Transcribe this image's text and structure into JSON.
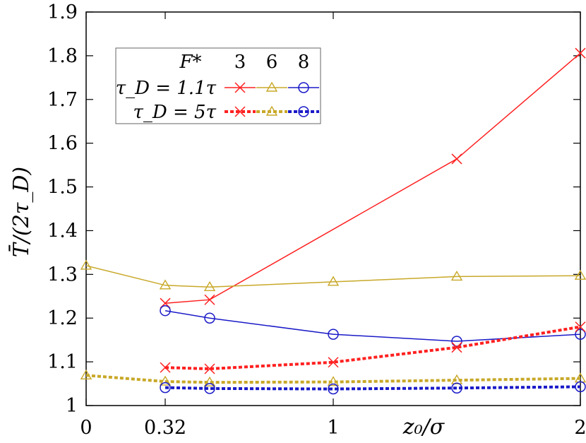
{
  "chart_data": {
    "type": "line",
    "xlabel": "z₀/σ",
    "ylabel": "T̄/(2τ_D)",
    "xlim": [
      0,
      2
    ],
    "ylim": [
      1,
      1.9
    ],
    "xticks": [
      {
        "value": 0,
        "label": "0"
      },
      {
        "value": 0.32,
        "label": "0.32"
      },
      {
        "value": 1,
        "label": "1"
      },
      {
        "value": 2,
        "label": "2"
      }
    ],
    "yticks": [
      {
        "value": 1.0,
        "label": "1"
      },
      {
        "value": 1.1,
        "label": "1.1"
      },
      {
        "value": 1.2,
        "label": "1.2"
      },
      {
        "value": 1.3,
        "label": "1.3"
      },
      {
        "value": 1.4,
        "label": "1.4"
      },
      {
        "value": 1.5,
        "label": "1.5"
      },
      {
        "value": 1.6,
        "label": "1.6"
      },
      {
        "value": 1.7,
        "label": "1.7"
      },
      {
        "value": 1.8,
        "label": "1.8"
      },
      {
        "value": 1.9,
        "label": "1.9"
      }
    ],
    "grid": false,
    "legend": {
      "placement": "top-left",
      "header": "F*",
      "columns": [
        "3",
        "6",
        "8"
      ],
      "rows": [
        "τ_D = 1.1τ",
        "τ_D = 5τ"
      ]
    },
    "series": [
      {
        "name": "τ_D = 1.1τ, F* = 3",
        "color": "#ff2020",
        "marker": "x",
        "style": "solid",
        "x": [
          0.32,
          0.5,
          1.5,
          2.0
        ],
        "y": [
          1.234,
          1.242,
          1.564,
          1.806
        ]
      },
      {
        "name": "τ_D = 1.1τ, F* = 6",
        "color": "#c8a828",
        "marker": "triangle",
        "style": "solid",
        "x": [
          0,
          0.32,
          0.5,
          1.0,
          1.5,
          2.0
        ],
        "y": [
          1.32,
          1.275,
          1.271,
          1.283,
          1.295,
          1.297
        ]
      },
      {
        "name": "τ_D = 1.1τ, F* = 8",
        "color": "#1a1ac8",
        "marker": "circle",
        "style": "solid",
        "x": [
          0.32,
          0.5,
          1.0,
          1.5,
          2.0
        ],
        "y": [
          1.217,
          1.2,
          1.163,
          1.147,
          1.163
        ]
      },
      {
        "name": "τ_D = 5τ, F* = 3",
        "color": "#ff2020",
        "marker": "x",
        "style": "dashed",
        "x": [
          0.32,
          0.5,
          1.0,
          1.5,
          2.0
        ],
        "y": [
          1.087,
          1.084,
          1.099,
          1.133,
          1.18
        ]
      },
      {
        "name": "τ_D = 5τ, F* = 6",
        "color": "#c8a828",
        "marker": "triangle",
        "style": "dashed",
        "x": [
          0,
          0.32,
          0.5,
          1.0,
          1.5,
          2.0
        ],
        "y": [
          1.069,
          1.055,
          1.053,
          1.054,
          1.058,
          1.062
        ]
      },
      {
        "name": "τ_D = 5τ, F* = 8",
        "color": "#1a1ac8",
        "marker": "circle",
        "style": "dashed",
        "x": [
          0.32,
          0.5,
          1.0,
          1.5,
          2.0
        ],
        "y": [
          1.041,
          1.039,
          1.038,
          1.04,
          1.043
        ]
      }
    ]
  }
}
